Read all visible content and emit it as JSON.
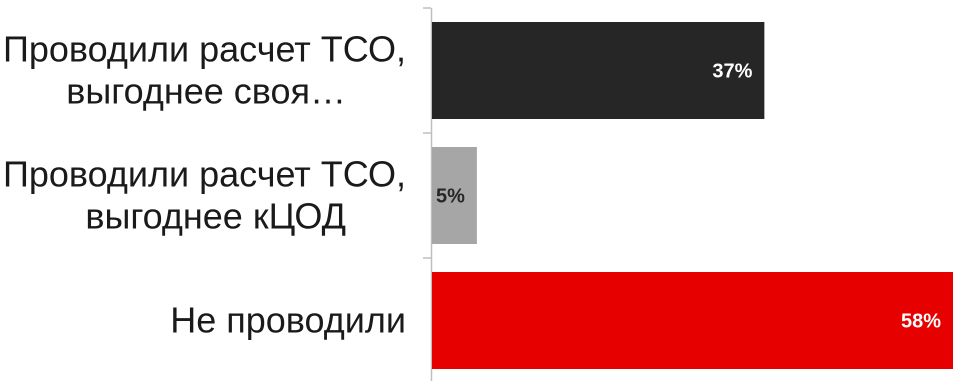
{
  "chart_data": {
    "type": "bar",
    "orientation": "horizontal",
    "categories": [
      [
        "Проводили расчет ТСО,",
        "выгоднее своя…"
      ],
      [
        "Проводили расчет ТСО,",
        "выгоднее кЦОД"
      ],
      [
        "Не проводили"
      ]
    ],
    "values": [
      37,
      5,
      58
    ],
    "data_labels": [
      "37%",
      "5%",
      "58%"
    ],
    "colors": [
      "#262626",
      "#a6a6a6",
      "#e60000"
    ],
    "label_colors": [
      "#ffffff",
      "#262626",
      "#ffffff"
    ],
    "xlim": [
      0,
      58
    ],
    "title": "",
    "xlabel": "",
    "ylabel": "",
    "grid": false,
    "legend": "none"
  }
}
